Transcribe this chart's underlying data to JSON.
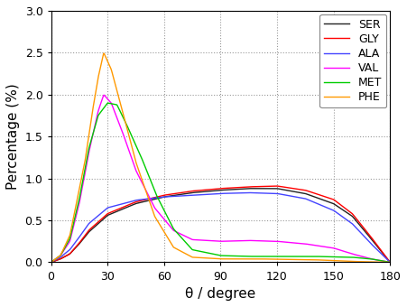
{
  "title": "",
  "xlabel": "θ / degree",
  "ylabel": "Percentage (%)",
  "xlim": [
    0,
    180
  ],
  "ylim": [
    0,
    3.0
  ],
  "xticks": [
    0,
    30,
    60,
    90,
    120,
    150,
    180
  ],
  "yticks": [
    0.0,
    0.5,
    1.0,
    1.5,
    2.0,
    2.5,
    3.0
  ],
  "series_order": [
    "SER",
    "GLY",
    "ALA",
    "VAL",
    "MET",
    "PHE"
  ],
  "series": {
    "SER": {
      "color": "#222222",
      "lw": 1.0
    },
    "GLY": {
      "color": "#ff0000",
      "lw": 1.0
    },
    "ALA": {
      "color": "#4444ff",
      "lw": 1.0
    },
    "VAL": {
      "color": "#ff00ff",
      "lw": 1.0
    },
    "MET": {
      "color": "#00cc00",
      "lw": 1.0
    },
    "PHE": {
      "color": "#ff9900",
      "lw": 1.0
    }
  },
  "background_color": "#ffffff",
  "grid_color": "#999999",
  "figsize": [
    4.51,
    3.4
  ],
  "dpi": 100
}
